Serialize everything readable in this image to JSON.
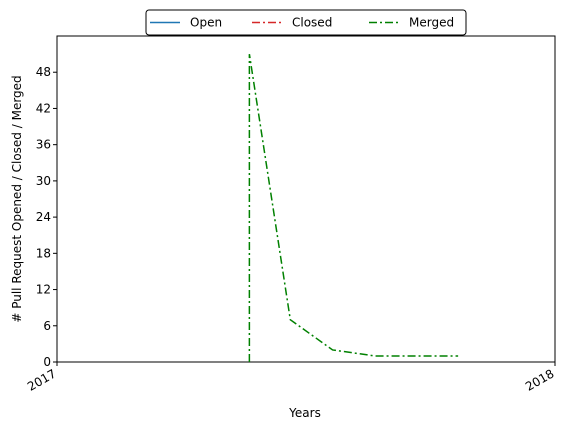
{
  "chart_data": {
    "type": "line",
    "xlabel": "Years",
    "ylabel": "# Pull Request Opened / Closed / Merged",
    "x_ticks": [
      "2017",
      "2018"
    ],
    "xlim": [
      "2017-01-01",
      "2018-01-01"
    ],
    "ylim": [
      0,
      54
    ],
    "y_ticks": [
      0,
      6,
      12,
      18,
      24,
      30,
      36,
      42,
      48
    ],
    "grid": false,
    "legend": {
      "placement": "top-center",
      "entries": [
        "Open",
        "Closed",
        "Merged"
      ]
    },
    "series": [
      {
        "name": "Open",
        "color": "#1f77b4",
        "style": "solid",
        "points": []
      },
      {
        "name": "Closed",
        "color": "#d62728",
        "style": "dashdot",
        "points": []
      },
      {
        "name": "Merged",
        "color": "#008000",
        "style": "dashdot",
        "points": [
          {
            "x": "2017-05-22",
            "y": 0
          },
          {
            "x": "2017-05-22",
            "y": 51
          },
          {
            "x": "2017-06-21",
            "y": 7
          },
          {
            "x": "2017-07-22",
            "y": 2
          },
          {
            "x": "2017-08-22",
            "y": 1
          },
          {
            "x": "2017-09-22",
            "y": 1
          },
          {
            "x": "2017-10-22",
            "y": 1
          }
        ]
      }
    ]
  }
}
